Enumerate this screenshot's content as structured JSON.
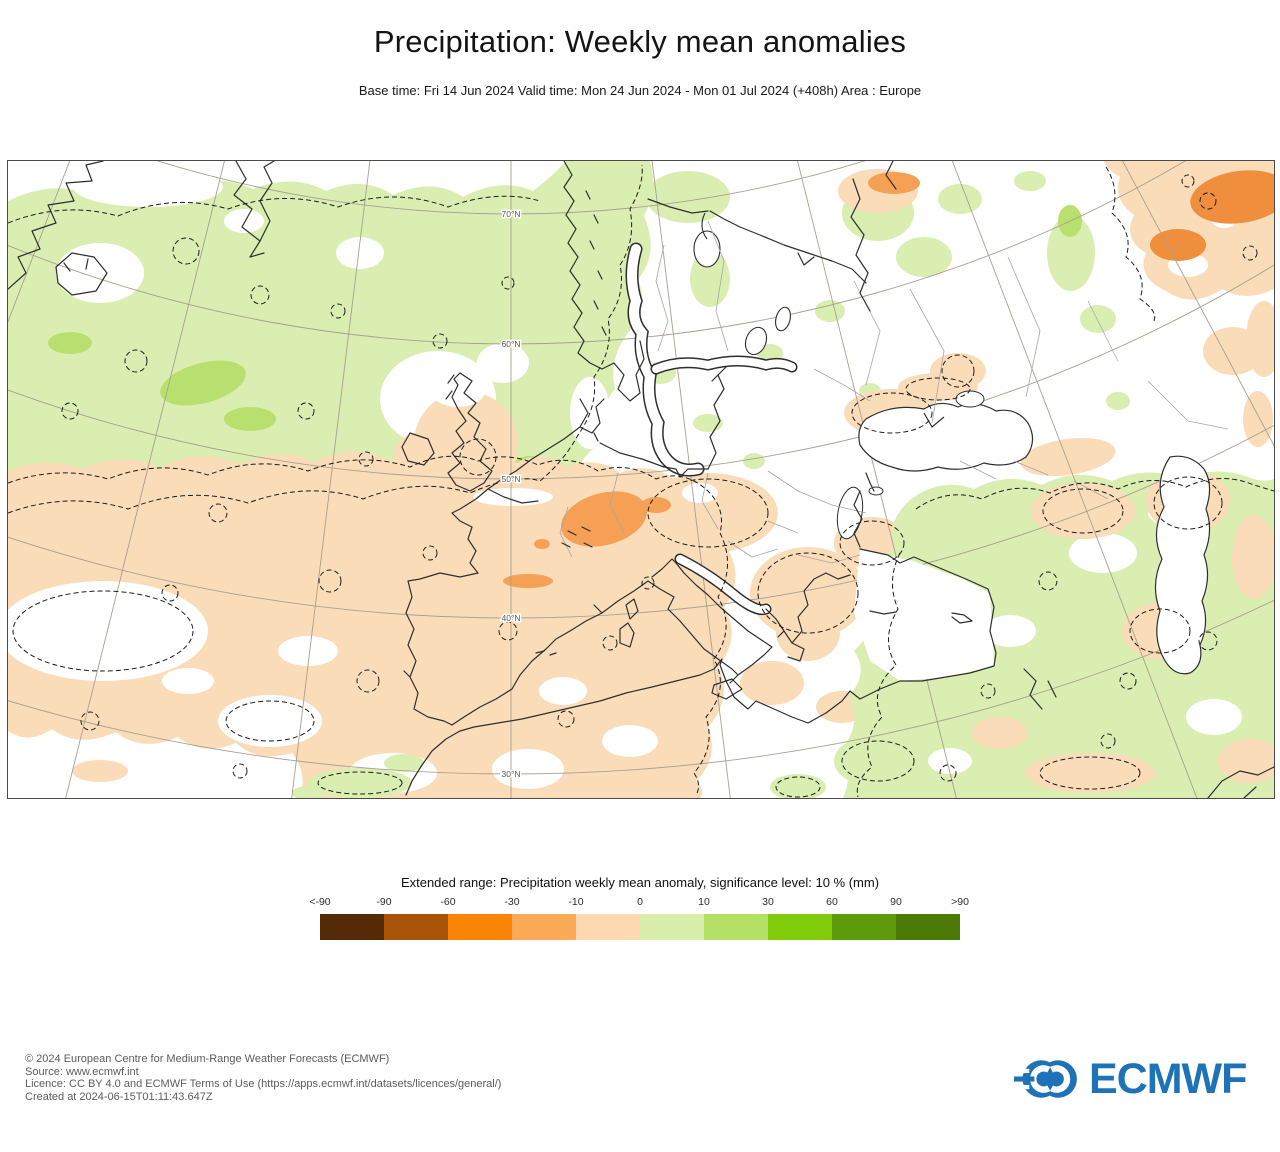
{
  "header": {
    "title": "Precipitation: Weekly mean anomalies",
    "subtitle": "Base time: Fri 14 Jun 2024 Valid time: Mon 24 Jun 2024 - Mon 01 Jul 2024 (+408h) Area : Europe"
  },
  "map": {
    "lat_labels": [
      "70°N",
      "60°N",
      "50°N",
      "40°N",
      "30°N"
    ],
    "colors": {
      "positive_light": "#d9eeb0",
      "positive_mid": "#b9e06e",
      "negative_light": "#fadcb8",
      "negative_mid": "#f6a055",
      "negative_dark_patch": "#ef8f3e"
    }
  },
  "legend": {
    "title": "Extended range: Precipitation weekly mean anomaly, significance level: 10 % (mm)",
    "ticks": [
      "<-90",
      "-90",
      "-60",
      "-30",
      "-10",
      "0",
      "10",
      "30",
      "60",
      "90",
      ">90"
    ],
    "colors": [
      "#542a07",
      "#a85408",
      "#fc8405",
      "#fbab57",
      "#fcd9b0",
      "#d9edaa",
      "#b4e165",
      "#80cb0a",
      "#5d9a0c",
      "#4d7a07"
    ]
  },
  "footer": {
    "lines": [
      "© 2024 European Centre for Medium-Range Weather Forecasts (ECMWF)",
      "Source: www.ecmwf.int",
      "Licence: CC BY 4.0 and ECMWF Terms of Use (https://apps.ecmwf.int/datasets/licences/general/)",
      "Created at 2024-06-15T01:11:43.647Z"
    ],
    "logo_text": "ECMWF",
    "logo_color": "#1e73b8"
  }
}
